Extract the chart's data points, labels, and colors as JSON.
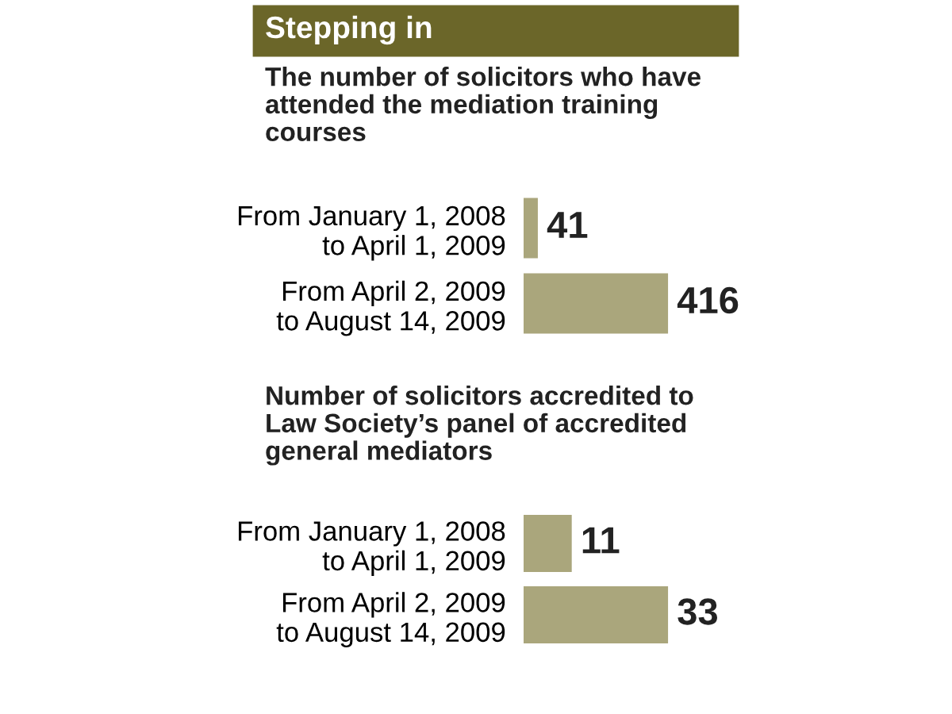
{
  "chart_data": [
    {
      "type": "bar",
      "orientation": "horizontal",
      "title": "Stepping in",
      "subtitle": "The number of solicitors who have\nattended the mediation training\ncourses",
      "categories": [
        "From January 1, 2008\nto April 1, 2009",
        "From April 2, 2009\nto August 14, 2009"
      ],
      "values": [
        41,
        416
      ],
      "color": "#aaa67c",
      "data_labels": true,
      "tick_labels": "y",
      "grid": false,
      "legend": false
    },
    {
      "type": "bar",
      "orientation": "horizontal",
      "title": "Number of solicitors accredited to\nLaw Society’s panel of accredited\ngeneral mediators",
      "categories": [
        "From January 1, 2008\nto April 1, 2009",
        "From April 2, 2009\nto August 14, 2009"
      ],
      "values": [
        11,
        33
      ],
      "color": "#aaa67c",
      "data_labels": true,
      "tick_labels": "y",
      "grid": false,
      "legend": false
    }
  ]
}
